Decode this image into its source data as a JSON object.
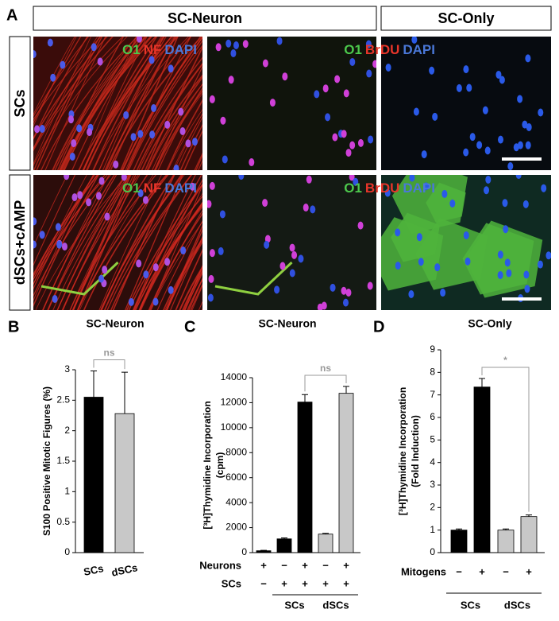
{
  "panel_a": {
    "letter": "A",
    "column_headers": [
      "SC-Neuron",
      "SC-Only"
    ],
    "row_labels": [
      "SCs",
      "dSCs+cAMP"
    ],
    "stain_labels": [
      [
        "O1",
        "NF",
        "DAPI"
      ],
      [
        "O1",
        "BrDU",
        "DAPI"
      ],
      [
        "O1",
        "NF",
        "DAPI"
      ],
      [
        "O1",
        "BrDU",
        "DAPI"
      ]
    ]
  },
  "chart_data": [
    {
      "type": "bar",
      "letter": "B",
      "title": "SC-Neuron",
      "ylabel": "S100 Positive Mitotic Figures (%)",
      "categories": [
        "SCs",
        "dSCs"
      ],
      "values": [
        2.55,
        2.28
      ],
      "errors": [
        0.43,
        0.68
      ],
      "colors": [
        "#000000",
        "#c8c8c8"
      ],
      "ylim": [
        0,
        3
      ],
      "yticks": [
        0,
        0.5,
        1,
        1.5,
        2,
        2.5,
        3
      ],
      "significance": "ns"
    },
    {
      "type": "bar",
      "letter": "C",
      "title": "SC-Neuron",
      "ylabel": "[³H]Thymidine Incorporation",
      "ylabel_unit": "(cpm)",
      "values": [
        150,
        1100,
        12050,
        1480,
        12750
      ],
      "errors": [
        30,
        80,
        600,
        60,
        550
      ],
      "colors": [
        "#000000",
        "#000000",
        "#000000",
        "#c8c8c8",
        "#c8c8c8"
      ],
      "ylim": [
        0,
        14000
      ],
      "yticks": [
        0,
        2000,
        4000,
        6000,
        8000,
        10000,
        12000,
        14000
      ],
      "significance": "ns",
      "conditions": [
        {
          "name": "Neurons",
          "values": [
            "+",
            "−",
            "+",
            "−",
            "+"
          ]
        },
        {
          "name": "SCs",
          "values": [
            "−",
            "+",
            "+",
            "+",
            "+"
          ]
        }
      ],
      "groups": [
        "SCs",
        "dSCs"
      ]
    },
    {
      "type": "bar",
      "letter": "D",
      "title": "SC-Only",
      "ylabel": "[³H]Thymidine Incorporation",
      "ylabel_unit": "(Fold Induction)",
      "values": [
        1.0,
        7.35,
        1.0,
        1.6
      ],
      "errors": [
        0.05,
        0.38,
        0.05,
        0.07
      ],
      "colors": [
        "#000000",
        "#000000",
        "#c8c8c8",
        "#c8c8c8"
      ],
      "ylim": [
        0,
        9
      ],
      "yticks": [
        0,
        1,
        2,
        3,
        4,
        5,
        6,
        7,
        8,
        9
      ],
      "significance": "*",
      "conditions": [
        {
          "name": "Mitogens",
          "values": [
            "−",
            "+",
            "−",
            "+"
          ]
        }
      ],
      "groups": [
        "SCs",
        "dSCs"
      ]
    }
  ]
}
